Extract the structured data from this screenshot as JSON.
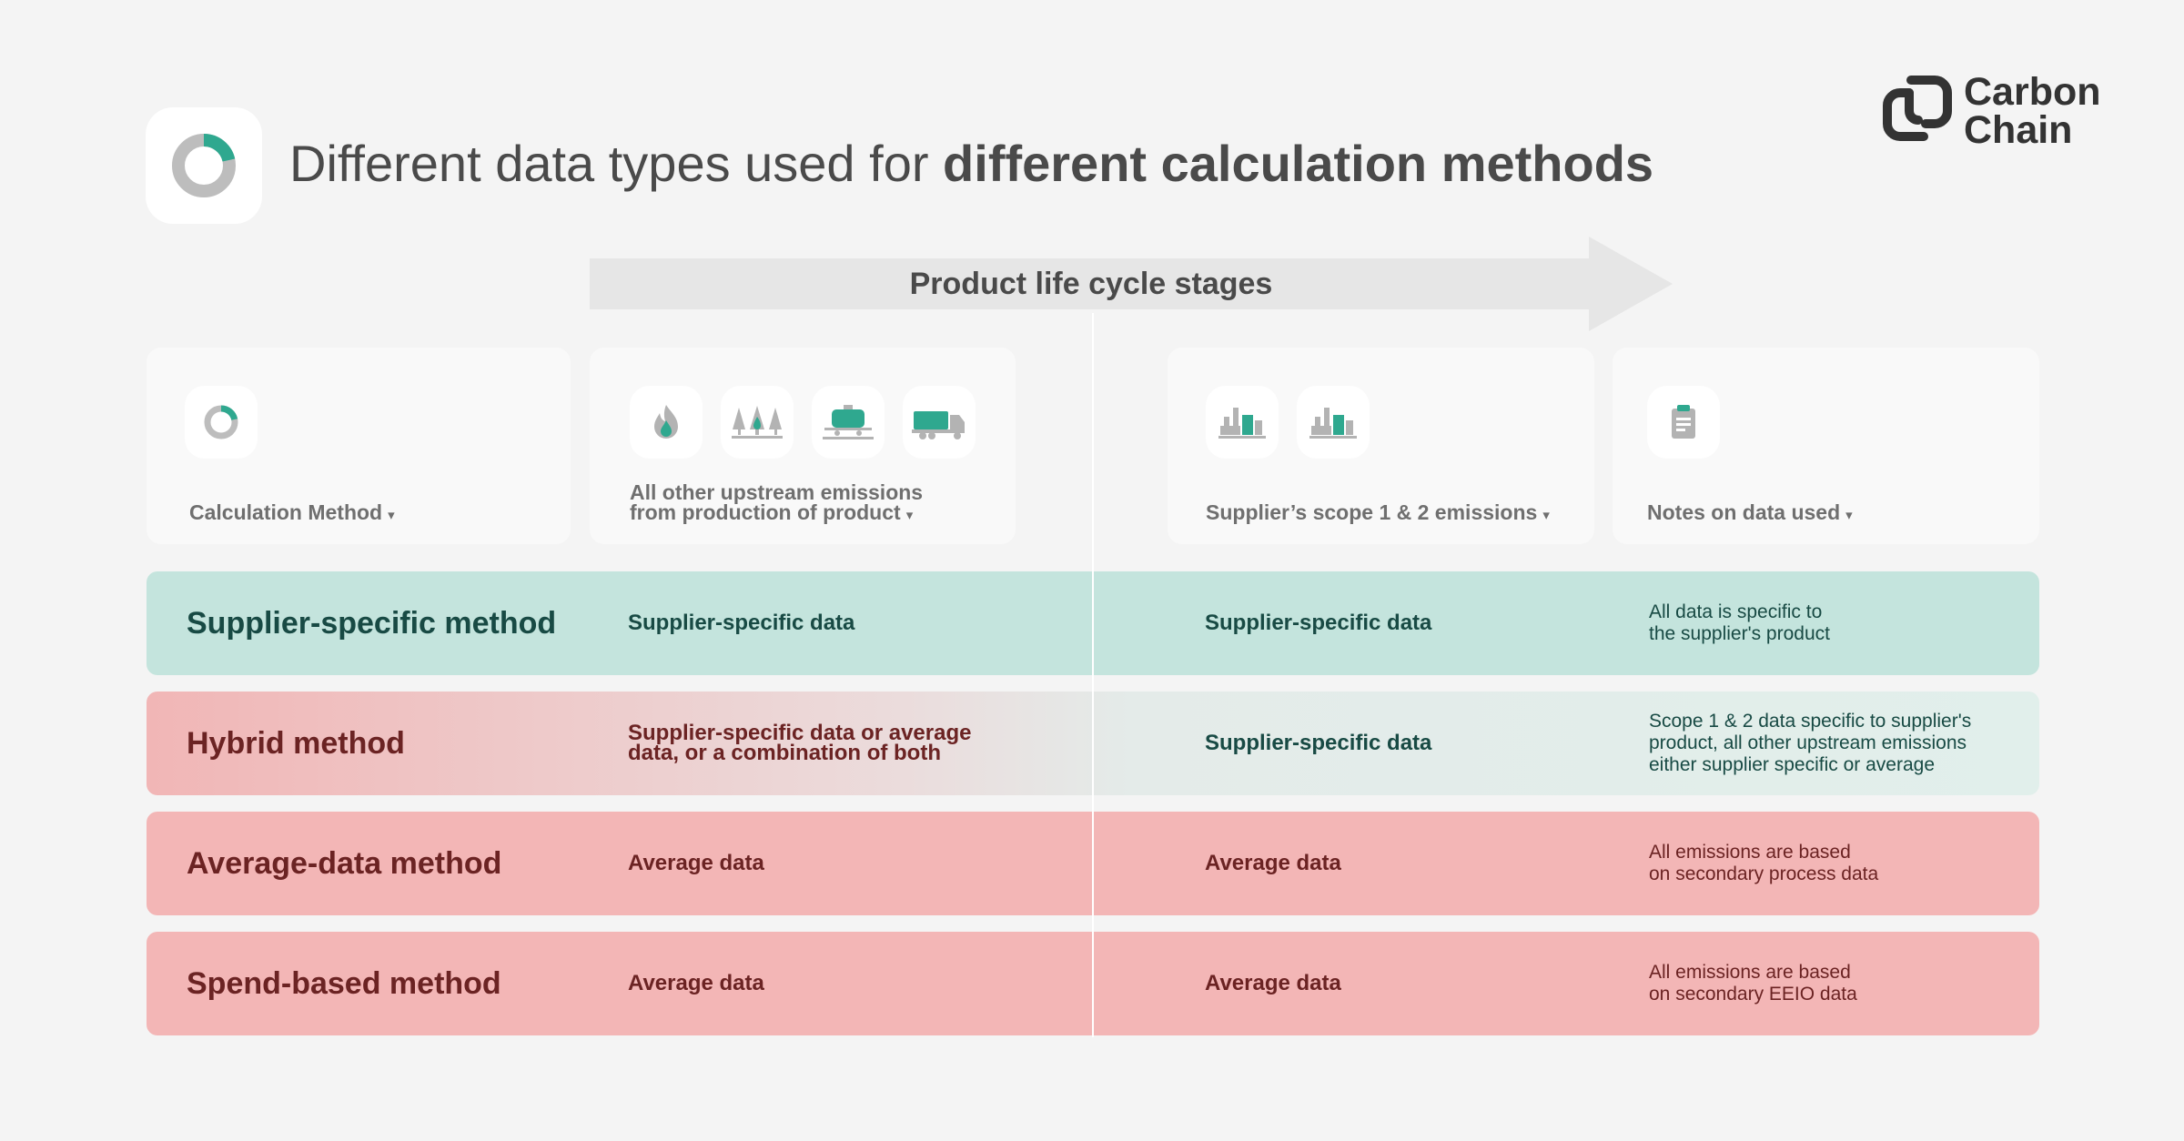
{
  "header": {
    "title_regular": "Different data types used for ",
    "title_bold": "different calculation methods"
  },
  "logo": {
    "line1": "Carbon",
    "line2": "Chain"
  },
  "lifecycle": {
    "label": "Product life cycle stages"
  },
  "columns": {
    "calculation_method": {
      "label": "Calculation Method",
      "icon": "donut-chart-icon"
    },
    "upstream": {
      "label_line1": "All other upstream emissions",
      "label_line2": "from production of product",
      "icons": [
        "flame-icon",
        "forest-icon",
        "tanker-car-icon",
        "truck-icon"
      ]
    },
    "supplier_scope": {
      "label": "Supplier’s scope 1 & 2 emissions",
      "icons": [
        "factory-icon",
        "factory-icon"
      ]
    },
    "notes": {
      "label": "Notes on data used",
      "icon": "clipboard-icon"
    },
    "caret": "▾"
  },
  "rows": [
    {
      "method": "Supplier-specific method",
      "upstream": [
        "Supplier-specific data"
      ],
      "scope": "Supplier-specific data",
      "notes": [
        "All data is specific to",
        "the supplier's product"
      ]
    },
    {
      "method": "Hybrid method",
      "upstream": [
        "Supplier-specific data or average",
        "data, or a combination of both"
      ],
      "scope": "Supplier-specific data",
      "notes": [
        "Scope 1 & 2 data specific to supplier's",
        "product, all other upstream emissions",
        "either supplier specific or average"
      ]
    },
    {
      "method": "Average-data method",
      "upstream": [
        "Average data"
      ],
      "scope": "Average data",
      "notes": [
        "All emissions are based",
        "on secondary process data"
      ]
    },
    {
      "method": "Spend-based method",
      "upstream": [
        "Average data"
      ],
      "scope": "Average data",
      "notes": [
        "All emissions are based",
        "on secondary EEIO data"
      ]
    }
  ],
  "colors": {
    "accent_green": "#2fa88f",
    "green_row": "#c4e4dd",
    "red_row": "#f3b6b6",
    "icon_gray": "#b3b3b3"
  }
}
